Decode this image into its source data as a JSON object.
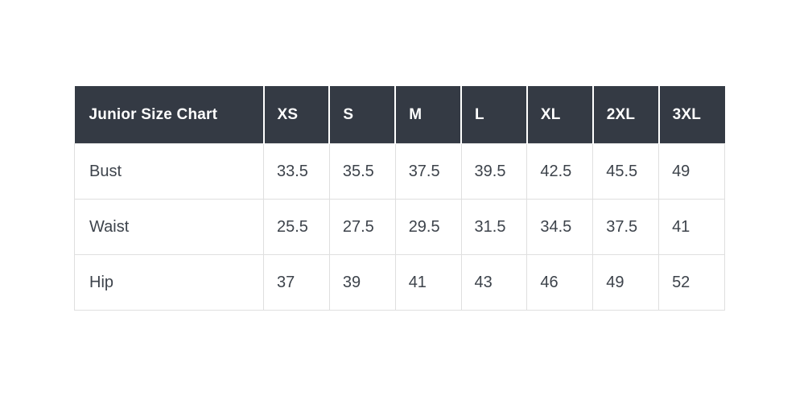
{
  "chart_data": {
    "type": "table",
    "title": "Junior Size Chart",
    "columns": [
      "XS",
      "S",
      "M",
      "L",
      "XL",
      "2XL",
      "3XL"
    ],
    "rows": [
      {
        "label": "Bust",
        "values": [
          "33.5",
          "35.5",
          "37.5",
          "39.5",
          "42.5",
          "45.5",
          "49"
        ]
      },
      {
        "label": "Waist",
        "values": [
          "25.5",
          "27.5",
          "29.5",
          "31.5",
          "34.5",
          "37.5",
          "41"
        ]
      },
      {
        "label": "Hip",
        "values": [
          "37",
          "39",
          "41",
          "43",
          "46",
          "49",
          "52"
        ]
      }
    ],
    "layout_hints": {
      "header_position": "top-row-and-left-column-title",
      "grid": "on",
      "value_alignment": "left"
    }
  },
  "colors": {
    "page_bg": "#ffffff",
    "header_bg": "#343a44",
    "header_text": "#ffffff",
    "header_divider": "#ffffff",
    "row_bg": "#ffffff",
    "body_text": "#3d434b",
    "grid_border": "#dfdfdf"
  }
}
